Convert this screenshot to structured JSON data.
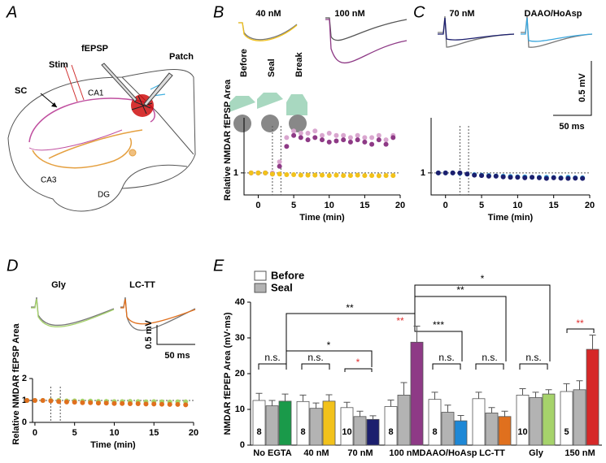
{
  "panel_labels": [
    "A",
    "B",
    "C",
    "D",
    "E"
  ],
  "diagram": {
    "labels": [
      "fEPSP",
      "Stim",
      "Patch",
      "SC",
      "CA1",
      "CA3",
      "DG"
    ]
  },
  "insets": {
    "B": [
      "40 nM",
      "100 nM"
    ],
    "C": [
      "70 nM",
      "DAAO/HoAsp"
    ],
    "D": [
      "Gly",
      "LC-TT"
    ],
    "recording_stages": [
      "Before",
      "Seal",
      "Break"
    ],
    "C_scale": [
      "0.5 mV",
      "50 ms"
    ],
    "D_scale": [
      "0.5 mV",
      "50 ms"
    ]
  },
  "chart_data": [
    {
      "type": "scatter",
      "ylabel": "Relative NMDAR fEPSP Area",
      "xlabel": "Time (min)",
      "x": [
        -1,
        0,
        1,
        2,
        3,
        4,
        5,
        6,
        7,
        8,
        9,
        10,
        11,
        12,
        13,
        14,
        15,
        16,
        17,
        18,
        19
      ],
      "series": [
        {
          "color": "#d9a6cf",
          "values": [
            1,
            1,
            1,
            1,
            1.5,
            2.6,
            2.9,
            2.8,
            2.8,
            2.9,
            2.7,
            2.8,
            2.7,
            2.7,
            2.6,
            2.7,
            2.6,
            2.6,
            2.7,
            2.5,
            2.7
          ]
        },
        {
          "color": "#8e3a86",
          "values": [
            1,
            1,
            1,
            0.95,
            1.3,
            2.2,
            2.7,
            2.6,
            2.5,
            2.6,
            2.5,
            2.4,
            2.45,
            2.5,
            2.4,
            2.5,
            2.4,
            2.3,
            2.5,
            2.3,
            2.6
          ]
        },
        {
          "color": "#f2c21b",
          "values": [
            1,
            1,
            1,
            0.95,
            0.95,
            0.92,
            0.92,
            0.9,
            0.9,
            0.9,
            0.9,
            0.88,
            0.9,
            0.88,
            0.88,
            0.9,
            0.88,
            0.88,
            0.87,
            0.88,
            0.88
          ]
        }
      ],
      "xlim": [
        -2,
        20
      ],
      "ylim": [
        0,
        3.5
      ],
      "xticks": [
        0,
        5,
        10,
        15,
        20
      ],
      "yticks": [
        1
      ],
      "reference_line": 1,
      "event_lines": [
        2,
        3.2
      ]
    },
    {
      "type": "scatter",
      "xlabel": "Time (min)",
      "x": [
        -1,
        0,
        1,
        2,
        3,
        4,
        5,
        6,
        7,
        8,
        9,
        10,
        11,
        12,
        13,
        14,
        15,
        16,
        17,
        18,
        19
      ],
      "series": [
        {
          "color": "#3aa6dd",
          "values": [
            1,
            1,
            1,
            0.98,
            0.95,
            0.92,
            0.9,
            0.88,
            0.86,
            0.85,
            0.84,
            0.82,
            0.82,
            0.8,
            0.8,
            0.8,
            0.79,
            0.78,
            0.8,
            0.78,
            0.78
          ]
        },
        {
          "color": "#1c1f6e",
          "values": [
            1,
            1,
            1,
            1,
            0.95,
            0.9,
            0.88,
            0.85,
            0.85,
            0.82,
            0.8,
            0.8,
            0.78,
            0.8,
            0.78,
            0.75,
            0.78,
            0.76,
            0.75,
            0.76,
            0.75
          ]
        }
      ],
      "xlim": [
        -2,
        20
      ],
      "ylim": [
        0,
        3.5
      ],
      "xticks": [
        0,
        5,
        10,
        15,
        20
      ],
      "yticks": [
        1
      ],
      "reference_line": 1,
      "event_lines": [
        2,
        3.2
      ]
    },
    {
      "type": "scatter",
      "ylabel": "Relative NMDAR fEPSP Area",
      "xlabel": "Time (min)",
      "x": [
        -1,
        0,
        1,
        2,
        3,
        4,
        5,
        6,
        7,
        8,
        9,
        10,
        11,
        12,
        13,
        14,
        15,
        16,
        17,
        18,
        19
      ],
      "series": [
        {
          "color": "#a6d36b",
          "values": [
            1,
            1,
            1,
            1,
            1,
            0.98,
            0.98,
            0.97,
            0.97,
            0.96,
            0.96,
            0.95,
            0.95,
            0.96,
            0.95,
            0.94,
            0.95,
            0.94,
            0.93,
            0.94,
            0.94
          ]
        },
        {
          "color": "#e0701e",
          "values": [
            1,
            1,
            1,
            0.98,
            0.95,
            0.93,
            0.92,
            0.9,
            0.9,
            0.88,
            0.88,
            0.86,
            0.86,
            0.85,
            0.85,
            0.84,
            0.84,
            0.83,
            0.82,
            0.82,
            0.8
          ]
        }
      ],
      "xlim": [
        -0.3,
        20
      ],
      "ylim": [
        0,
        2
      ],
      "xticks": [
        0,
        5,
        10,
        15,
        20
      ],
      "yticks": [
        0,
        1,
        2
      ],
      "reference_line": 1,
      "event_lines": [
        2,
        3.2
      ]
    },
    {
      "type": "bar",
      "ylabel": "NMDAR fEPEP Area (mV·ms)",
      "categories": [
        "No EGTA",
        "40 nM",
        "70 nM",
        "100 nM",
        "DAAO/HoAsp",
        "LC-TT",
        "Gly",
        "150 nM"
      ],
      "series": [
        {
          "name": "Before",
          "color": "#ffffff",
          "values": [
            12.5,
            12.2,
            10.5,
            10.8,
            12.8,
            13,
            14,
            15
          ],
          "errors": [
            2,
            1.8,
            1.5,
            1.8,
            2,
            1.8,
            1.8,
            2.2
          ]
        },
        {
          "name": "Seal",
          "color": "#b3b3b3",
          "values": [
            11,
            10.3,
            8,
            14,
            9.2,
            9,
            13.3,
            15.5
          ],
          "errors": [
            1.5,
            1.5,
            1.5,
            3.5,
            2,
            1.5,
            1.5,
            2.5
          ]
        },
        {
          "colors": [
            "#1a9a4a",
            "#f2c21b",
            "#1c1f6e",
            "#8e3a86",
            "#1e88d6",
            "#e0701e",
            "#a6d36b",
            "#d62828"
          ],
          "values": [
            12.3,
            12.3,
            7.2,
            28.8,
            6.8,
            8,
            14.3,
            26.8
          ],
          "errors": [
            2,
            1.8,
            1,
            4.5,
            1.5,
            1.5,
            1.2,
            4
          ]
        }
      ],
      "n_labels": [
        8,
        8,
        10,
        8,
        8,
        null,
        10,
        5
      ],
      "ylim": [
        0,
        40
      ],
      "yticks": [
        0,
        10,
        20,
        30,
        40
      ],
      "annotations": [
        {
          "text": "n.s.",
          "color": "#000000"
        },
        {
          "text": "n.s.",
          "color": "#000000"
        },
        {
          "text": "*",
          "color": "#e03030"
        },
        {
          "text": "*",
          "color": "#000000"
        },
        {
          "text": "**",
          "color": "#e03030"
        },
        {
          "text": "**",
          "color": "#000000"
        },
        {
          "text": "n.s.",
          "color": "#000000"
        },
        {
          "text": "n.s.",
          "color": "#000000"
        },
        {
          "text": "n.s.",
          "color": "#000000"
        },
        {
          "text": "**",
          "color": "#e03030"
        },
        {
          "text": "***",
          "color": "#000000"
        },
        {
          "text": "**",
          "color": "#000000"
        },
        {
          "text": "*",
          "color": "#000000"
        }
      ]
    }
  ]
}
